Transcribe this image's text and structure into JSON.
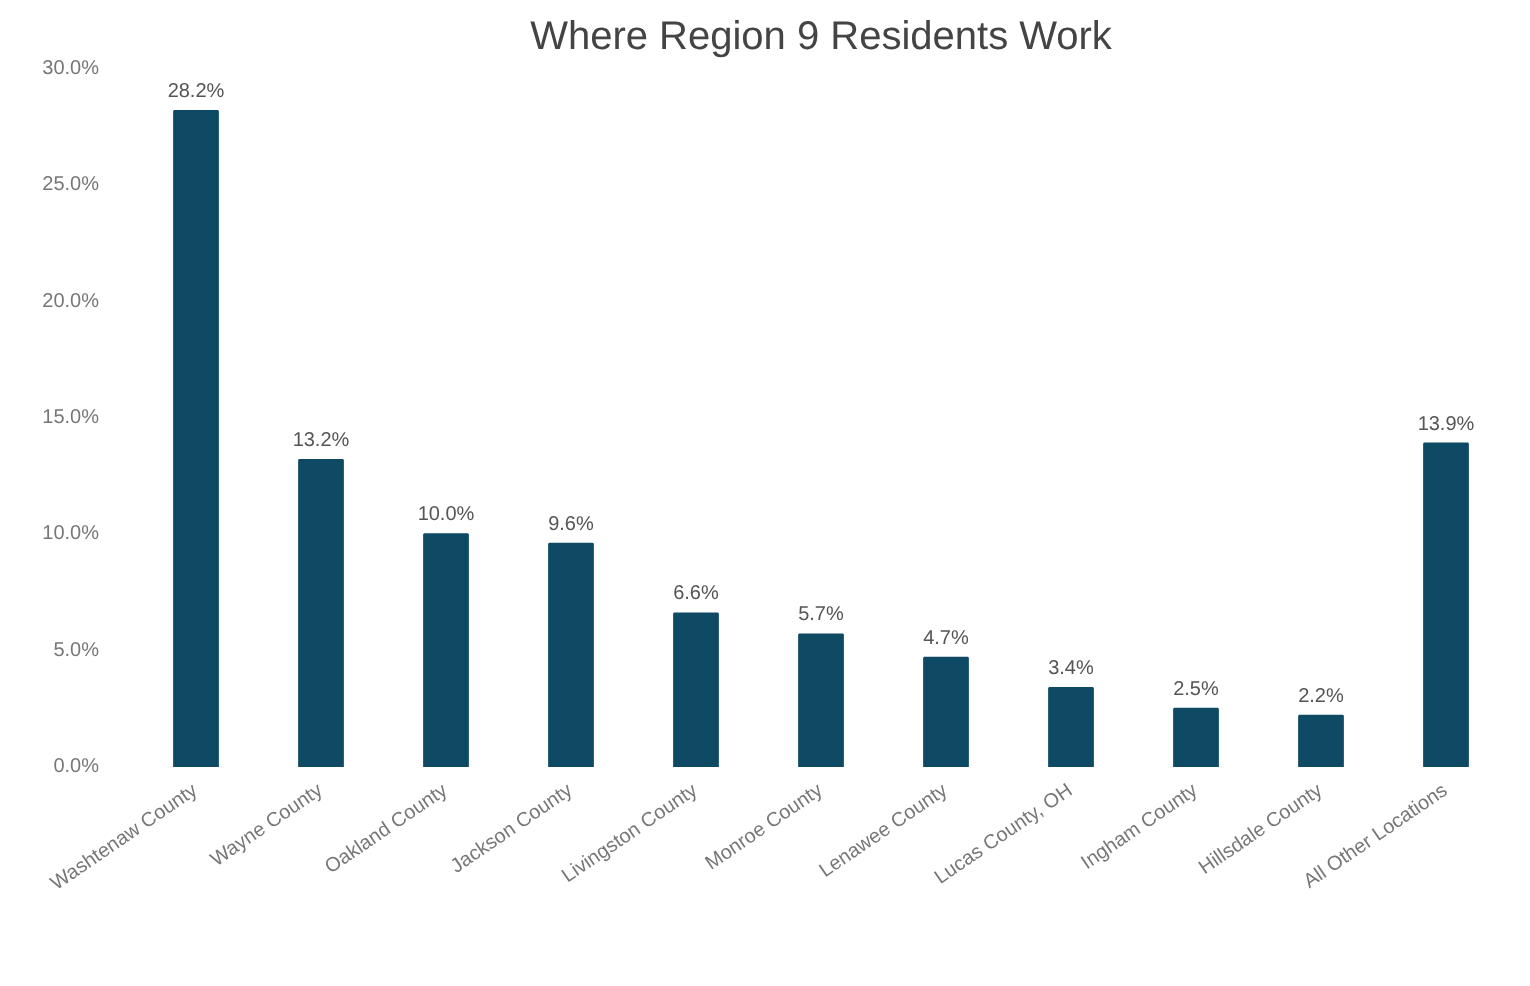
{
  "chart_data": {
    "type": "bar",
    "title": "Where Region 9 Residents Work",
    "categories": [
      "Washtenaw County",
      "Wayne County",
      "Oakland County",
      "Jackson County",
      "Livingston County",
      "Monroe County",
      "Lenawee County",
      "Lucas County, OH",
      "Ingham County",
      "Hillsdale County",
      "All Other Locations"
    ],
    "values": [
      28.2,
      13.2,
      10.0,
      9.6,
      6.6,
      5.7,
      4.7,
      3.4,
      2.5,
      2.2,
      13.9
    ],
    "value_labels": [
      "28.2%",
      "13.2%",
      "10.0%",
      "9.6%",
      "6.6%",
      "5.7%",
      "4.7%",
      "3.4%",
      "2.5%",
      "2.2%",
      "13.9%"
    ],
    "color": "#0e4a63",
    "ylim": [
      0,
      30
    ],
    "yticks": [
      {
        "value": 0,
        "label": "0.0%"
      },
      {
        "value": 5,
        "label": "5.0%"
      },
      {
        "value": 10,
        "label": "10.0%"
      },
      {
        "value": 15,
        "label": "15.0%"
      },
      {
        "value": 20,
        "label": "20.0%"
      },
      {
        "value": 25,
        "label": "25.0%"
      },
      {
        "value": 30,
        "label": "30.0%"
      }
    ],
    "grid": false
  }
}
